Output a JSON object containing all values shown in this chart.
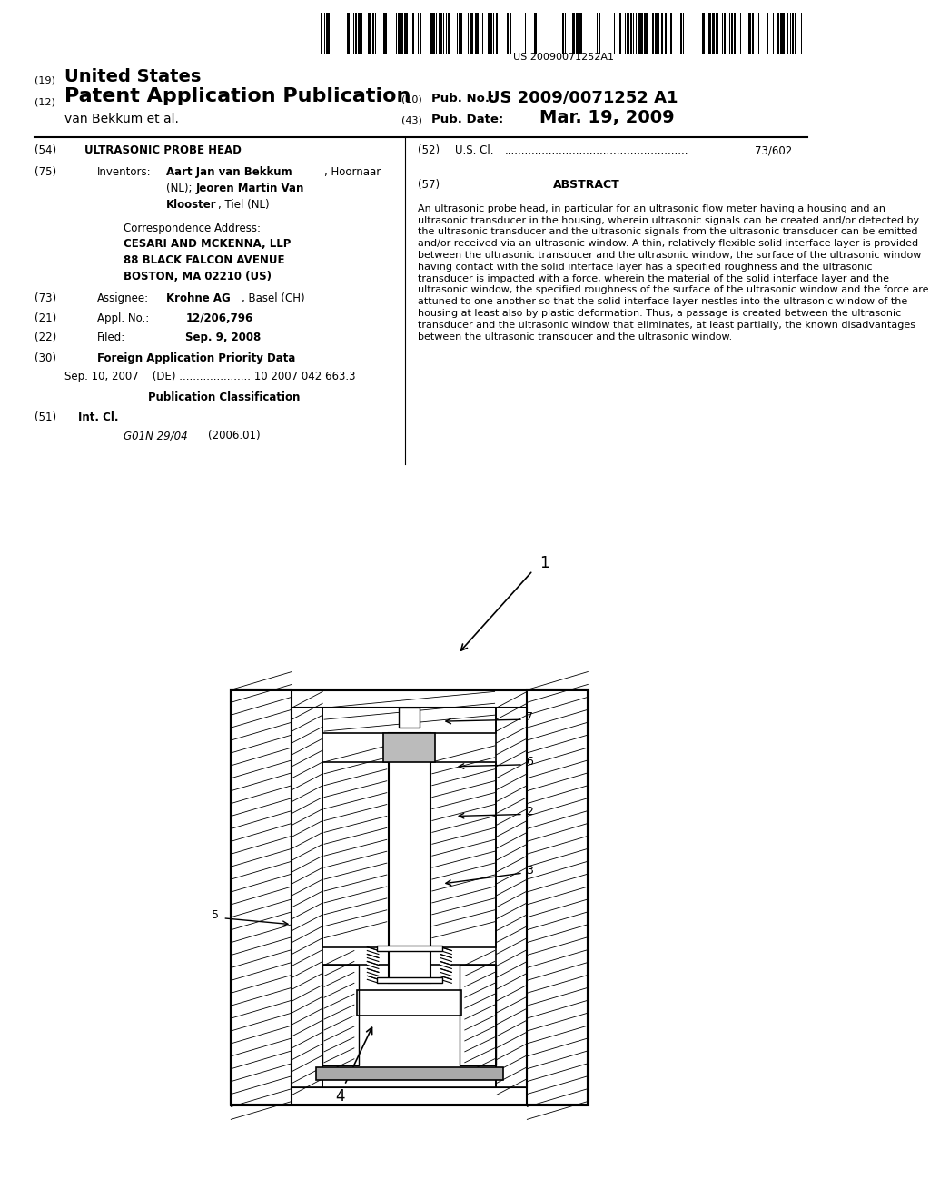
{
  "bg_color": "#ffffff",
  "barcode_text": "US 20090071252A1",
  "title_19": "(19)",
  "title_19_text": "United States",
  "title_12": "(12)",
  "title_12_text": "Patent Application Publication",
  "title_10": "(10)",
  "title_10_text": "Pub. No.:",
  "title_10_val": "US 2009/0071252 A1",
  "title_43": "(43)",
  "title_43_text": "Pub. Date:",
  "title_43_val": "Mar. 19, 2009",
  "author_line": "van Bekkum et al.",
  "section_54_label": "(54)",
  "section_54_text": "ULTRASONIC PROBE HEAD",
  "section_52_label": "(52)",
  "section_52_text": "U.S. Cl.",
  "section_52_dots": "......................................................",
  "section_52_val": "73/602",
  "section_75_label": "(75)",
  "section_75_text_label": "Inventors:",
  "corr_addr_label": "Correspondence Address:",
  "corr_addr_line1": "CESARI AND MCKENNA, LLP",
  "corr_addr_line2": "88 BLACK FALCON AVENUE",
  "corr_addr_line3": "BOSTON, MA 02210 (US)",
  "section_73_label": "(73)",
  "section_73_text_label": "Assignee:",
  "section_73_bold": "Krohne AG",
  "section_73_rest": ", Basel (CH)",
  "section_21_label": "(21)",
  "section_21_text_label": "Appl. No.:",
  "section_21_text": "12/206,796",
  "section_22_label": "(22)",
  "section_22_text_label": "Filed:",
  "section_22_text": "Sep. 9, 2008",
  "section_30_label": "(30)",
  "section_30_text": "Foreign Application Priority Data",
  "section_30_data": "Sep. 10, 2007    (DE) ..................... 10 2007 042 663.3",
  "pub_class_label": "Publication Classification",
  "section_51_label": "(51)",
  "section_51_text_label": "Int. Cl.",
  "section_51_class": "G01N 29/04",
  "section_51_date": "(2006.01)",
  "section_57_label": "(57)",
  "section_57_text_label": "ABSTRACT",
  "abstract_text": "An ultrasonic probe head, in particular for an ultrasonic flow meter having a housing and an ultrasonic transducer in the housing, wherein ultrasonic signals can be created and/or detected by the ultrasonic transducer and the ultrasonic signals from the ultrasonic transducer can be emitted and/or received via an ultrasonic window. A thin, relatively flexible solid interface layer is provided between the ultrasonic transducer and the ultrasonic window, the surface of the ultrasonic window having contact with the solid interface layer has a specified roughness and the ultrasonic transducer is impacted with a force, wherein the material of the solid interface layer and the ultrasonic window, the specified roughness of the surface of the ultrasonic window and the force are attuned to one another so that the solid interface layer nestles into the ultrasonic window of the housing at least also by plastic deformation. Thus, a passage is created between the ultrasonic transducer and the ultrasonic window that eliminates, at least partially, the known disadvantages between the ultrasonic transducer and the ultrasonic window."
}
